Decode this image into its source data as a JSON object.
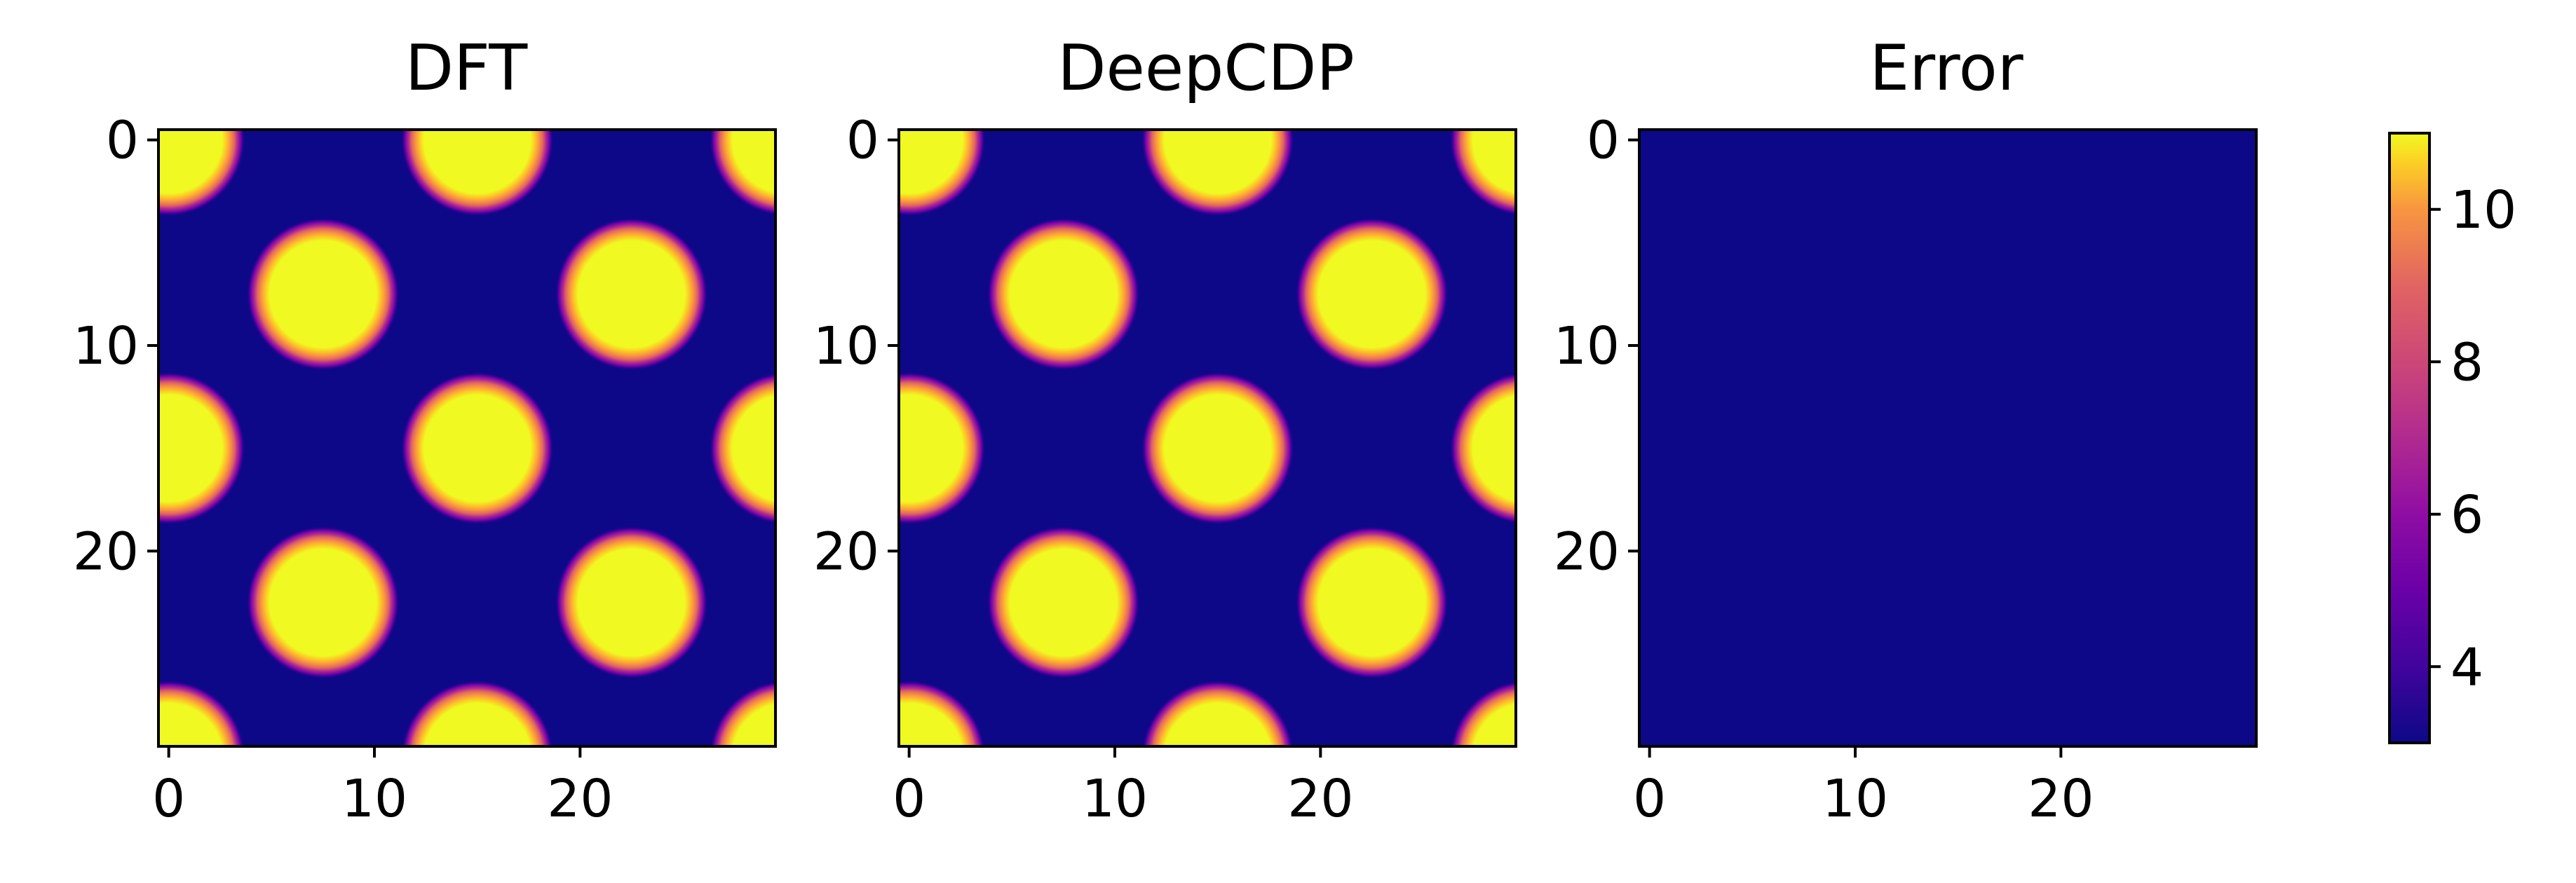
{
  "chart_data": {
    "type": "heatmap",
    "colormap": "plasma",
    "colorbar": {
      "range": [
        3,
        11
      ],
      "ticks": [
        4,
        6,
        8,
        10
      ],
      "tick_labels": [
        "4",
        "6",
        "8",
        "10"
      ]
    },
    "grid": false,
    "panels": [
      {
        "title": "DFT",
        "x_ticks": [
          0,
          10,
          20
        ],
        "x_tick_labels": [
          "0",
          "10",
          "20"
        ],
        "y_ticks": [
          0,
          10,
          20
        ],
        "y_tick_labels": [
          "0",
          "10",
          "20"
        ],
        "extent": [
          -0.5,
          29.5
        ],
        "background_value": 3.0,
        "peak_value": 11.0,
        "blob_centers": [
          [
            0,
            0
          ],
          [
            15,
            0
          ],
          [
            30,
            0
          ],
          [
            7.5,
            7.5
          ],
          [
            22.5,
            7.5
          ],
          [
            0,
            15
          ],
          [
            15,
            15
          ],
          [
            30,
            15
          ],
          [
            7.5,
            22.5
          ],
          [
            22.5,
            22.5
          ],
          [
            0,
            30
          ],
          [
            15,
            30
          ],
          [
            30,
            30
          ]
        ],
        "blob_radius": 2.6
      },
      {
        "title": "DeepCDP",
        "x_ticks": [
          0,
          10,
          20
        ],
        "x_tick_labels": [
          "0",
          "10",
          "20"
        ],
        "y_ticks": [
          0,
          10,
          20
        ],
        "y_tick_labels": [
          "0",
          "10",
          "20"
        ],
        "extent": [
          -0.5,
          29.5
        ],
        "background_value": 3.0,
        "peak_value": 11.0,
        "blob_centers": [
          [
            0,
            0
          ],
          [
            15,
            0
          ],
          [
            30,
            0
          ],
          [
            7.5,
            7.5
          ],
          [
            22.5,
            7.5
          ],
          [
            0,
            15
          ],
          [
            15,
            15
          ],
          [
            30,
            15
          ],
          [
            7.5,
            22.5
          ],
          [
            22.5,
            22.5
          ],
          [
            0,
            30
          ],
          [
            15,
            30
          ],
          [
            30,
            30
          ]
        ],
        "blob_radius": 2.6
      },
      {
        "title": "Error",
        "x_ticks": [
          0,
          10,
          20
        ],
        "x_tick_labels": [
          "0",
          "10",
          "20"
        ],
        "y_ticks": [
          0,
          10,
          20
        ],
        "y_tick_labels": [
          "0",
          "10",
          "20"
        ],
        "extent": [
          -0.5,
          29.5
        ],
        "background_value": 3.0,
        "peak_value": 3.0,
        "blob_centers": [],
        "blob_radius": 0
      }
    ]
  }
}
